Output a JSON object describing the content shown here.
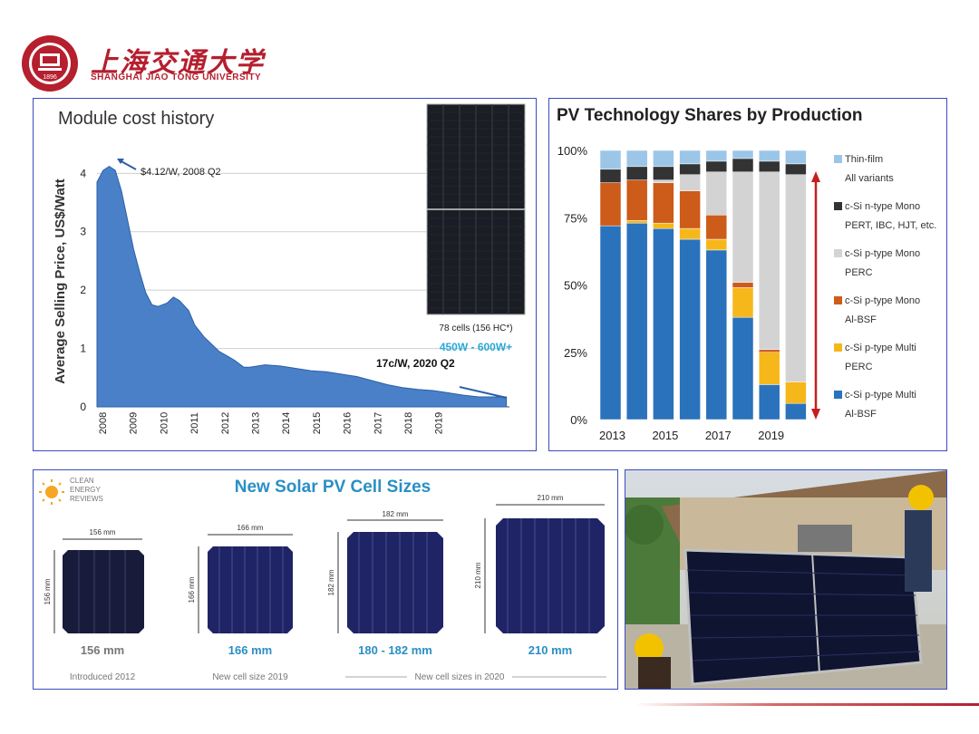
{
  "header": {
    "university_cn": "上海交通大学",
    "university_en": "SHANGHAI  JIAO TONG  UNIVERSITY",
    "seal_year": "1896"
  },
  "module_panel": {
    "title": "Module cost history",
    "annotation_peak": "$4.12/W, 2008 Q2",
    "annotation_end": "17c/W, 2020 Q2",
    "panel_caption": "78 cells (156 HC*)",
    "power_range": "450W - 600W+",
    "color_fill": "#4a80c8"
  },
  "tech_panel": {
    "title": "PV Technology Shares by Production"
  },
  "cell_panel": {
    "title": "New Solar PV Cell Sizes",
    "brand": [
      "CLEAN",
      "ENERGY",
      "REVIEWS"
    ],
    "cells": [
      {
        "dim": "156 mm",
        "label": "156 mm",
        "note": "Introduced 2012"
      },
      {
        "dim": "166 mm",
        "label": "166 mm",
        "note": "New cell size 2019"
      },
      {
        "dim": "182 mm",
        "label": "180 - 182 mm",
        "note": ""
      },
      {
        "dim": "210 mm",
        "label": "210 mm",
        "note": ""
      }
    ],
    "shared_note": "New cell sizes in 2020"
  },
  "chart_data": [
    {
      "type": "area",
      "title": "Module cost history",
      "xlabel": "",
      "ylabel": "Average Selling Price, US$/Watt",
      "xlim": [
        2008,
        2021.5
      ],
      "ylim": [
        0,
        4.3
      ],
      "yticks": [
        0,
        1,
        2,
        3,
        4
      ],
      "xticks": [
        "2008",
        "2009",
        "2010",
        "2011",
        "2012",
        "2013",
        "2014",
        "2015",
        "2016",
        "2017",
        "2018",
        "2019"
      ],
      "x": [
        2008.0,
        2008.2,
        2008.4,
        2008.6,
        2008.8,
        2009.0,
        2009.2,
        2009.4,
        2009.6,
        2009.8,
        2010.0,
        2010.3,
        2010.5,
        2010.7,
        2011.0,
        2011.2,
        2011.5,
        2012.0,
        2012.5,
        2012.8,
        2013.0,
        2013.5,
        2014.0,
        2014.5,
        2015.0,
        2015.5,
        2016.0,
        2016.5,
        2017.0,
        2017.5,
        2018.0,
        2018.5,
        2019.0,
        2019.5,
        2020.0,
        2020.5,
        2021.0,
        2021.4
      ],
      "y": [
        3.85,
        4.05,
        4.12,
        4.05,
        3.7,
        3.2,
        2.7,
        2.3,
        1.95,
        1.75,
        1.72,
        1.78,
        1.88,
        1.82,
        1.65,
        1.4,
        1.2,
        0.95,
        0.8,
        0.68,
        0.68,
        0.72,
        0.7,
        0.66,
        0.62,
        0.6,
        0.56,
        0.52,
        0.45,
        0.38,
        0.33,
        0.3,
        0.28,
        0.24,
        0.2,
        0.17,
        0.17,
        0.17
      ]
    },
    {
      "type": "bar",
      "stacked": true,
      "title": "PV Technology Shares by Production",
      "categories": [
        "2013",
        "2014",
        "2015",
        "2016",
        "2017",
        "2018",
        "2019",
        "2020"
      ],
      "xticks": [
        "2013",
        "2015",
        "2017",
        "2019"
      ],
      "yticks": [
        "0%",
        "25%",
        "50%",
        "75%",
        "100%"
      ],
      "ylim": [
        0,
        100
      ],
      "legend_position": "right",
      "series": [
        {
          "name": "c-Si p-type Multi Al-BSF",
          "color": "#2a72bb",
          "values": [
            72,
            73,
            71,
            67,
            63,
            38,
            13,
            6
          ]
        },
        {
          "name": "c-Si p-type Multi PERC",
          "color": "#f5b71a",
          "values": [
            0,
            1,
            2,
            4,
            4,
            11,
            12,
            8
          ]
        },
        {
          "name": "c-Si p-type Mono Al-BSF",
          "color": "#cd5b1a",
          "values": [
            16,
            15,
            15,
            14,
            9,
            2,
            1,
            0
          ]
        },
        {
          "name": "c-Si p-type Mono PERC",
          "color": "#d3d3d3",
          "values": [
            0,
            0,
            1,
            6,
            16,
            41,
            66,
            77
          ]
        },
        {
          "name": "c-Si n-type Mono PERT, IBC, HJT, etc.",
          "color": "#333333",
          "values": [
            5,
            5,
            5,
            4,
            4,
            5,
            4,
            4
          ]
        },
        {
          "name": "Thin-film All variants",
          "color": "#9cc6e8",
          "values": [
            7,
            6,
            6,
            5,
            4,
            3,
            4,
            5
          ]
        }
      ]
    }
  ]
}
